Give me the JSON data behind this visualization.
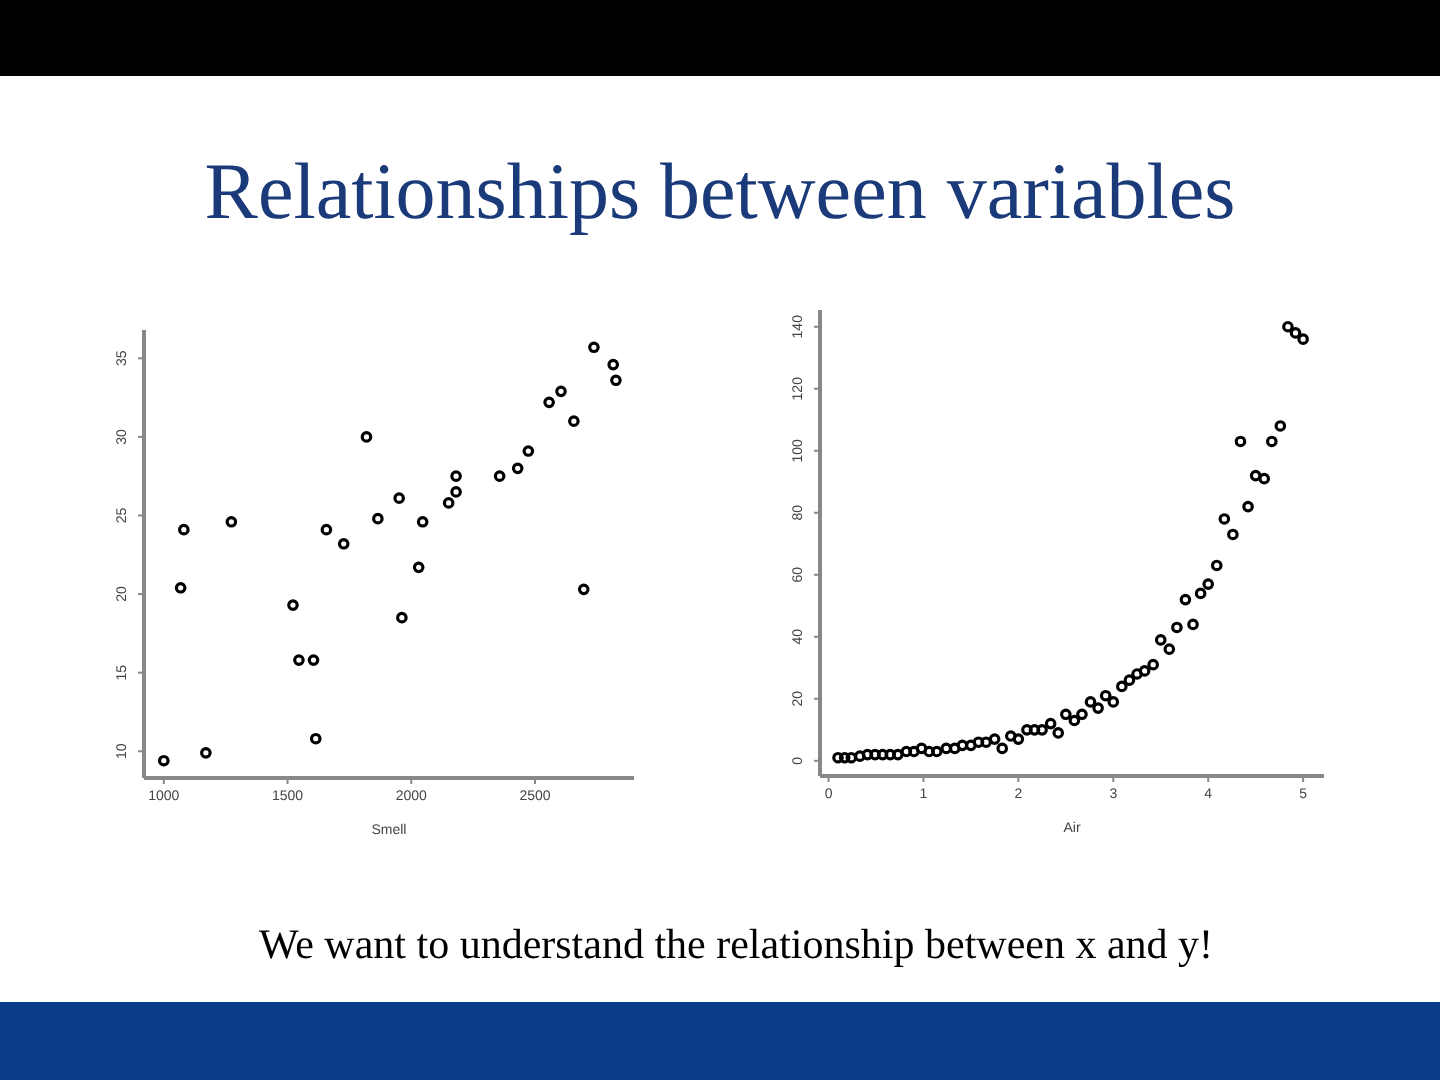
{
  "chart_data": [
    {
      "type": "scatter",
      "title": "Relationships between variables",
      "xlabel": "Smell",
      "marker": "circle",
      "grid": false,
      "xlim": [
        920,
        2900
      ],
      "ylim": [
        8.3,
        36.8
      ],
      "xticks": [
        1000,
        1500,
        2000,
        2500
      ],
      "yticks": [
        10,
        15,
        20,
        25,
        30,
        35
      ],
      "series": [
        {
          "color": "#000000",
          "x": [
            1000,
            1068,
            1081,
            1170,
            1273,
            1522,
            1546,
            1605,
            1614,
            1657,
            1727,
            1819,
            1865,
            1951,
            1962,
            2030,
            2046,
            2151,
            2181,
            2181,
            2357,
            2430,
            2473,
            2557,
            2605,
            2657,
            2697,
            2738,
            2816,
            2827
          ],
          "values": [
            9.4,
            20.4,
            24.1,
            9.9,
            24.6,
            19.3,
            15.8,
            15.8,
            10.8,
            24.1,
            23.2,
            30.0,
            24.8,
            26.1,
            18.5,
            21.7,
            24.6,
            25.8,
            26.5,
            27.5,
            27.5,
            28.0,
            29.1,
            32.2,
            32.9,
            31.0,
            20.3,
            35.7,
            34.6,
            33.6
          ]
        }
      ]
    },
    {
      "type": "scatter",
      "xlabel": "Air",
      "marker": "circle",
      "grid": false,
      "annotations": [
        "We want to understand the relationship between x and y!"
      ],
      "xlim": [
        -0.09,
        5.22
      ],
      "ylim": [
        -4.9,
        145.4
      ],
      "xticks": [
        0,
        1,
        2,
        3,
        4,
        5
      ],
      "yticks": [
        0,
        20,
        40,
        60,
        80,
        100,
        120,
        140
      ],
      "series": [
        {
          "color": "#000000",
          "x": [
            0.1,
            0.17,
            0.24,
            0.33,
            0.41,
            0.49,
            0.57,
            0.65,
            0.73,
            0.82,
            0.9,
            0.98,
            1.06,
            1.14,
            1.24,
            1.33,
            1.41,
            1.5,
            1.58,
            1.66,
            1.75,
            1.83,
            1.92,
            2.0,
            2.09,
            2.17,
            2.25,
            2.34,
            2.42,
            2.5,
            2.59,
            2.67,
            2.76,
            2.84,
            2.92,
            3.0,
            3.09,
            3.17,
            3.25,
            3.33,
            3.42,
            3.5,
            3.59,
            3.67,
            3.76,
            3.84,
            3.92,
            4.0,
            4.09,
            4.17,
            4.26,
            4.34,
            4.42,
            4.5,
            4.59,
            4.67,
            4.76,
            4.84,
            4.92,
            5.0
          ],
          "values": [
            1,
            1,
            1,
            1.5,
            2,
            2,
            2,
            2,
            2,
            3,
            3,
            4,
            3,
            3,
            4,
            4,
            5,
            5,
            6,
            6,
            7,
            4,
            8,
            7,
            10,
            10,
            10,
            12,
            9,
            15,
            13,
            15,
            19,
            17,
            21,
            19,
            24,
            26,
            28,
            29,
            31,
            39,
            36,
            43,
            52,
            44,
            54,
            57,
            63,
            78,
            73,
            103,
            82,
            92,
            91,
            103,
            108,
            140,
            138,
            136
          ]
        }
      ]
    }
  ]
}
